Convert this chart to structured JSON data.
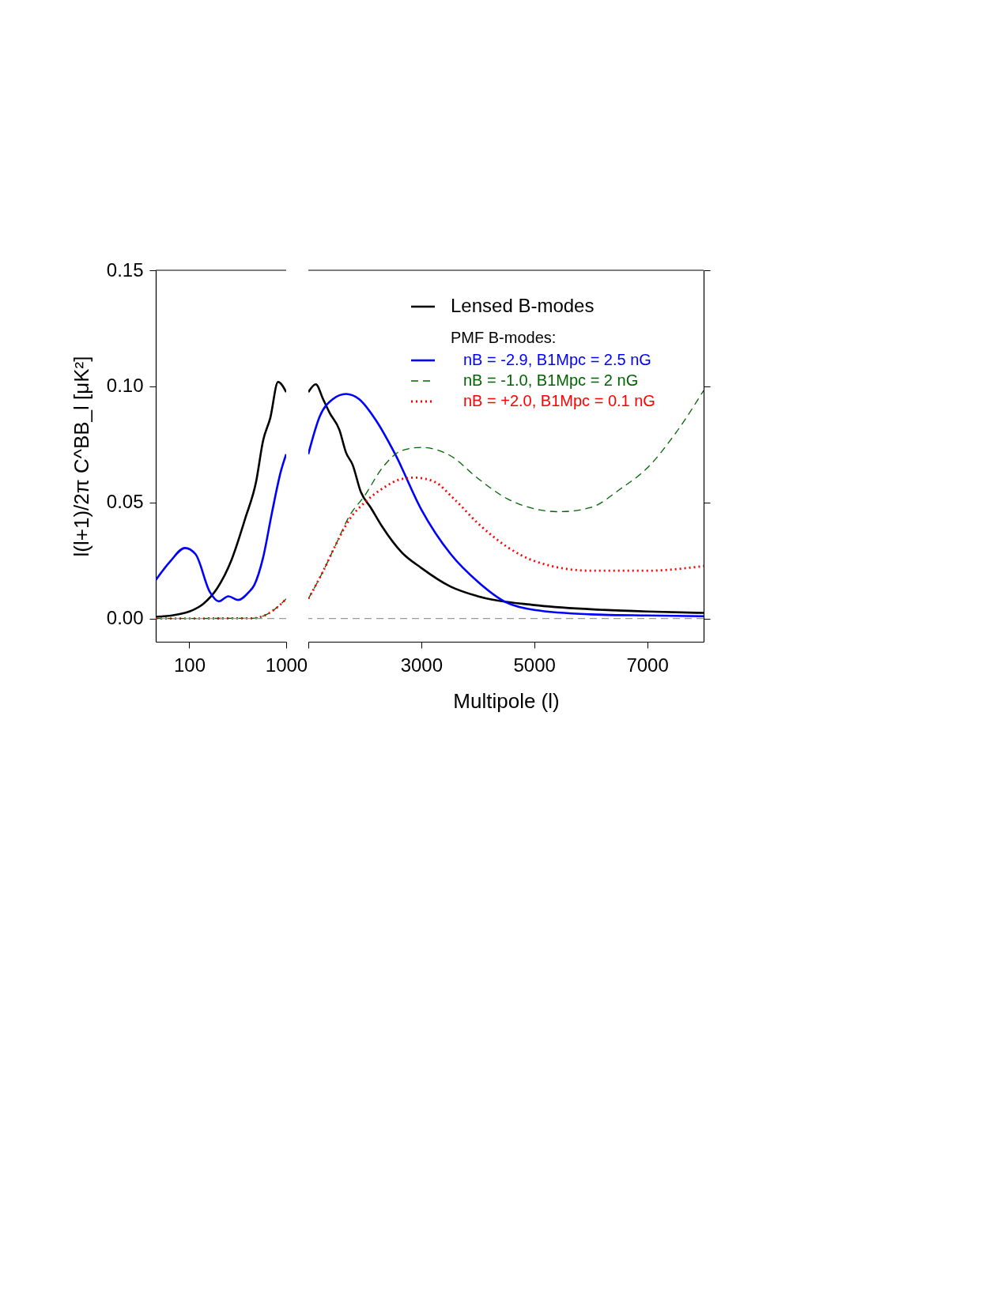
{
  "chart_data": [
    {
      "type": "line",
      "ylabel": "l(l+1)/2π C^BB_l [μK²]",
      "log": "x",
      "xlim": [
        45,
        1000
      ],
      "xticks": [
        100,
        1000
      ],
      "ylim": [
        -0.01,
        0.15
      ],
      "yticks": [
        {
          "value": 0,
          "label": "0.00"
        },
        {
          "value": 0.05,
          "label": "0.05"
        },
        {
          "value": 0.1,
          "label": "0.10"
        },
        {
          "value": 0.15,
          "label": "0.15"
        }
      ],
      "grid": false,
      "legend": false,
      "ref_lines": [
        {
          "axis": "y",
          "value": 0,
          "color": "#999999",
          "line_style": "dashed"
        }
      ],
      "series": [
        {
          "color": "#000000",
          "line_style": "solid",
          "x": [
            45,
            70,
            100,
            138,
            193,
            270,
            379,
            489,
            578,
            685,
            824,
            1000
          ],
          "values": [
            0.0007,
            0.0015,
            0.003,
            0.0062,
            0.0129,
            0.0248,
            0.0433,
            0.0589,
            0.0767,
            0.0864,
            0.1019,
            0.0975
          ]
        },
        {
          "color": "#0000ff",
          "line_style": "solid",
          "x": [
            45,
            64,
            90,
            116,
            163,
            201,
            253,
            320,
            412,
            468,
            578,
            713,
            881,
            1000
          ],
          "values": [
            0.0166,
            0.0248,
            0.0304,
            0.0277,
            0.0114,
            0.0074,
            0.0096,
            0.008,
            0.0114,
            0.0144,
            0.0263,
            0.0456,
            0.0634,
            0.0708
          ]
        },
        {
          "color": "#006400",
          "line_style": "dashed",
          "x": [
            45,
            450,
            630,
            881,
            1000
          ],
          "values": [
            0,
            0.0001,
            0.0018,
            0.0062,
            0.0085
          ]
        },
        {
          "color": "#ff0000",
          "line_style": "dotted",
          "x": [
            45,
            450,
            630,
            881,
            1000
          ],
          "values": [
            0,
            0.0001,
            0.0018,
            0.0062,
            0.0085
          ]
        }
      ]
    },
    {
      "type": "line",
      "xlabel": "Multipole (l)",
      "xlim": [
        1000,
        8000
      ],
      "xticks": [
        {
          "value": 1000,
          "label": null
        },
        3000,
        5000,
        7000
      ],
      "ylim": [
        -0.01,
        0.15
      ],
      "yticks": [
        {
          "value": 0,
          "label": null
        },
        {
          "value": 0.05,
          "label": null
        },
        {
          "value": 0.1,
          "label": null
        },
        {
          "value": 0.15,
          "label": null
        }
      ],
      "tick_labels": "x",
      "grid": false,
      "legend": "top right",
      "annotations": [
        "PMF B-modes:"
      ],
      "ref_lines": [
        {
          "axis": "y",
          "value": 0,
          "color": "#999999",
          "line_style": "dashed"
        }
      ],
      "series": [
        {
          "name": "Lensed B-modes",
          "color": "#000000",
          "line_style": "solid",
          "x": [
            1000,
            1133,
            1261,
            1377,
            1551,
            1667,
            1783,
            1930,
            2105,
            2307,
            2653,
            3000,
            3523,
            4000,
            5000,
            6000,
            7000,
            8000
          ],
          "values": [
            0.0975,
            0.1009,
            0.0945,
            0.0886,
            0.0812,
            0.0715,
            0.0663,
            0.0545,
            0.0478,
            0.0396,
            0.0285,
            0.0218,
            0.0137,
            0.0096,
            0.0058,
            0.004,
            0.003,
            0.0024
          ]
        },
        {
          "name": "nB = -2.9, B1Mpc = 2.5 nG",
          "color": "#0000ff",
          "line_style": "solid",
          "x": [
            1000,
            1203,
            1435,
            1667,
            1899,
            2192,
            2538,
            3000,
            3523,
            4000,
            4500,
            5000,
            6000,
            7000,
            8000
          ],
          "values": [
            0.0708,
            0.0871,
            0.0945,
            0.0967,
            0.0945,
            0.0856,
            0.0708,
            0.047,
            0.0277,
            0.0159,
            0.007,
            0.0037,
            0.0018,
            0.0013,
            0.001
          ]
        },
        {
          "name": "nB = -1.0, B1Mpc = 2 nG",
          "color": "#006400",
          "line_style": "dashed",
          "x": [
            1000,
            1261,
            1494,
            1726,
            2000,
            2307,
            2653,
            3000,
            3523,
            4000,
            4530,
            5000,
            5440,
            6000,
            6530,
            7000,
            7500,
            8000
          ],
          "values": [
            0.0085,
            0.0203,
            0.0322,
            0.0441,
            0.053,
            0.0648,
            0.0723,
            0.0737,
            0.07,
            0.0604,
            0.0515,
            0.0473,
            0.046,
            0.0478,
            0.0559,
            0.0648,
            0.0797,
            0.0982
          ]
        },
        {
          "name": "nB = +2.0, B1Mpc = 0.1 nG",
          "color": "#ff0000",
          "line_style": "dotted",
          "x": [
            1000,
            1261,
            1494,
            1726,
            2000,
            2307,
            2653,
            2884,
            3233,
            3581,
            4000,
            4530,
            5000,
            6000,
            7000,
            8000
          ],
          "values": [
            0.0085,
            0.0203,
            0.0322,
            0.0426,
            0.05,
            0.0559,
            0.0601,
            0.0607,
            0.0589,
            0.0515,
            0.0411,
            0.0307,
            0.0248,
            0.0206,
            0.0206,
            0.0226
          ]
        }
      ]
    }
  ]
}
